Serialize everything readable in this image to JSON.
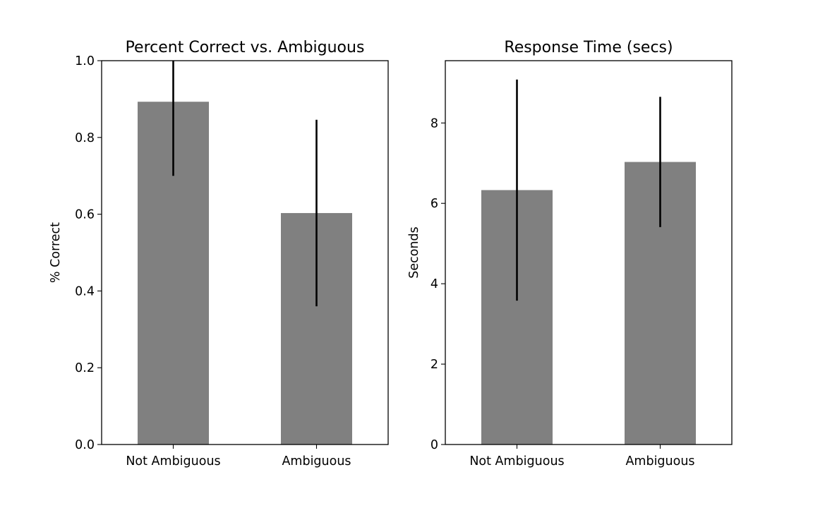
{
  "chart_data": [
    {
      "type": "bar",
      "title": "Percent Correct vs. Ambiguous",
      "xlabel": "",
      "ylabel": "% Correct",
      "categories": [
        "Not Ambiguous",
        "Ambiguous"
      ],
      "values": [
        0.893,
        0.603
      ],
      "error": [
        0.193,
        0.243
      ],
      "ylim": [
        0.0,
        1.0
      ],
      "yticks": [
        0.0,
        0.2,
        0.4,
        0.6,
        0.8,
        1.0
      ],
      "ytick_labels": [
        "0.0",
        "0.2",
        "0.4",
        "0.6",
        "0.8",
        "1.0"
      ],
      "bar_color": "#808080",
      "error_color": "#000000",
      "grid": false
    },
    {
      "type": "bar",
      "title": "Response Time (secs)",
      "xlabel": "",
      "ylabel": "Seconds",
      "categories": [
        "Not Ambiguous",
        "Ambiguous"
      ],
      "values": [
        6.33,
        7.03
      ],
      "error": [
        2.75,
        1.62
      ],
      "ylim": [
        0,
        9.55
      ],
      "yticks": [
        0,
        2,
        4,
        6,
        8
      ],
      "ytick_labels": [
        "0",
        "2",
        "4",
        "6",
        "8"
      ],
      "bar_color": "#808080",
      "error_color": "#000000",
      "grid": false
    }
  ]
}
